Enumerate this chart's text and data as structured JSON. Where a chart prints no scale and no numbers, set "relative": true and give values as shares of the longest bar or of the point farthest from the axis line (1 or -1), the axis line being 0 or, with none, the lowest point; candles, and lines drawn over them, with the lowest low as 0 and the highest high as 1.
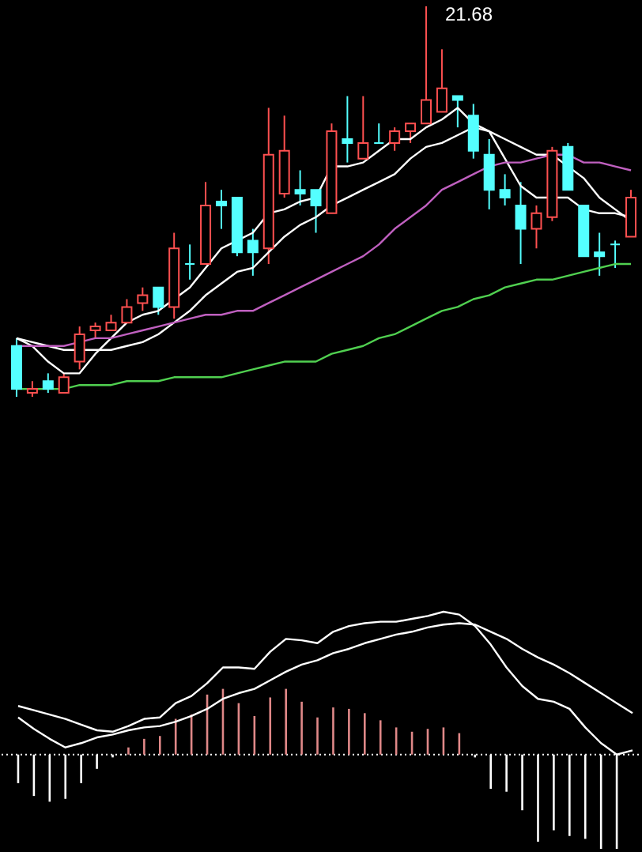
{
  "chart_data": [
    {
      "type": "candlestick",
      "relative": true,
      "categories": [
        null,
        null,
        null,
        null,
        null,
        null,
        null,
        null,
        null,
        null,
        null,
        null,
        null,
        null,
        null,
        null,
        null,
        null,
        null,
        null,
        null,
        null,
        null,
        null,
        null,
        null,
        null,
        null,
        null,
        null,
        null,
        null,
        null,
        null,
        null,
        null,
        null,
        null,
        null,
        null
      ],
      "ohlc": [
        [
          0.13,
          0.15,
          0,
          0.02
        ],
        [
          0.01,
          0.04,
          0,
          0.02
        ],
        [
          0.04,
          0.06,
          0.01,
          0.02
        ],
        [
          0.01,
          0.06,
          0.01,
          0.05
        ],
        [
          0.09,
          0.18,
          0.07,
          0.16
        ],
        [
          0.17,
          0.19,
          0.15,
          0.18
        ],
        [
          0.17,
          0.21,
          0.17,
          0.19
        ],
        [
          0.19,
          0.25,
          0.19,
          0.23
        ],
        [
          0.24,
          0.28,
          0.22,
          0.26
        ],
        [
          0.28,
          0.28,
          0.21,
          0.23
        ],
        [
          0.23,
          0.42,
          0.2,
          0.38
        ],
        [
          0.34,
          0.39,
          0.3,
          0.34
        ],
        [
          0.34,
          0.55,
          0.34,
          0.49
        ],
        [
          0.5,
          0.53,
          0.43,
          0.49
        ],
        [
          0.51,
          0.51,
          0.36,
          0.37
        ],
        [
          0.4,
          0.43,
          0.31,
          0.37
        ],
        [
          0.38,
          0.74,
          0.34,
          0.62
        ],
        [
          0.52,
          0.72,
          0.51,
          0.63
        ],
        [
          0.53,
          0.58,
          0.49,
          0.52
        ],
        [
          0.53,
          0.53,
          0.42,
          0.49
        ],
        [
          0.47,
          0.7,
          0.47,
          0.68
        ],
        [
          0.66,
          0.77,
          0.6,
          0.65
        ],
        [
          0.61,
          0.77,
          0.61,
          0.65
        ],
        [
          0.65,
          0.7,
          0.65,
          0.65
        ],
        [
          0.65,
          0.69,
          0.63,
          0.68
        ],
        [
          0.68,
          0.7,
          0.65,
          0.7
        ],
        [
          0.7,
          1,
          0.7,
          0.76
        ],
        [
          0.73,
          0.89,
          0.73,
          0.79
        ],
        [
          0.77,
          0.77,
          0.69,
          0.76
        ],
        [
          0.72,
          0.75,
          0.61,
          0.63
        ],
        [
          0.62,
          0.66,
          0.48,
          0.53
        ],
        [
          0.53,
          0.57,
          0.49,
          0.51
        ],
        [
          0.49,
          0.55,
          0.34,
          0.43
        ],
        [
          0.43,
          0.49,
          0.38,
          0.47
        ],
        [
          0.46,
          0.64,
          0.45,
          0.63
        ],
        [
          0.64,
          0.65,
          0.53,
          0.53
        ],
        [
          0.49,
          0.49,
          0.36,
          0.36
        ],
        [
          0.37,
          0.42,
          0.31,
          0.36
        ],
        [
          0.39,
          0.4,
          0.33,
          0.39
        ],
        [
          0.41,
          0.53,
          0.41,
          0.51
        ]
      ],
      "colors": [
        "#54ffff",
        "#ff5050",
        "#54ffff",
        "#ff5050",
        "#ff5050",
        "#ff5050",
        "#ff5050",
        "#ff5050",
        "#ff5050",
        "#54ffff",
        "#ff5050",
        "#54ffff",
        "#ff5050",
        "#54ffff",
        "#54ffff",
        "#54ffff",
        "#ff5050",
        "#ff5050",
        "#54ffff",
        "#54ffff",
        "#ff5050",
        "#54ffff",
        "#ff5050",
        "#54ffff",
        "#ff5050",
        "#ff5050",
        "#ff5050",
        "#ff5050",
        "#54ffff",
        "#54ffff",
        "#54ffff",
        "#54ffff",
        "#54ffff",
        "#ff5050",
        "#ff5050",
        "#54ffff",
        "#54ffff",
        "#54ffff",
        "#54ffff",
        "#ff5050"
      ],
      "annotations": [
        "21.68"
      ],
      "series": [
        {
          "type": "line",
          "color": "#ffffff",
          "values": [
            0.15,
            0.13,
            0.09,
            0.06,
            0.06,
            0.11,
            0.15,
            0.19,
            0.21,
            0.22,
            0.25,
            0.28,
            0.33,
            0.38,
            0.4,
            0.42,
            0.47,
            0.48,
            0.5,
            0.51,
            0.59,
            0.59,
            0.6,
            0.63,
            0.66,
            0.66,
            0.69,
            0.71,
            0.74,
            0.7,
            0.68,
            0.61,
            0.54,
            0.51,
            0.51,
            0.51,
            0.48,
            0.47,
            0.47,
            0.46
          ]
        },
        {
          "type": "line",
          "color": "#ffffff",
          "values": [
            0.15,
            0.14,
            0.13,
            0.12,
            0.12,
            0.12,
            0.12,
            0.13,
            0.14,
            0.16,
            0.19,
            0.22,
            0.26,
            0.29,
            0.32,
            0.33,
            0.37,
            0.41,
            0.44,
            0.46,
            0.49,
            0.51,
            0.53,
            0.55,
            0.57,
            0.61,
            0.64,
            0.65,
            0.67,
            0.69,
            0.68,
            0.66,
            0.64,
            0.62,
            0.62,
            null,
            0.56,
            0.51,
            0.48,
            0.45
          ]
        },
        {
          "type": "line",
          "color": "#c060c0",
          "values": [
            0.13,
            0.13,
            0.13,
            0.13,
            0.14,
            0.15,
            0.15,
            0.16,
            0.17,
            0.18,
            0.19,
            0.2,
            0.21,
            0.21,
            0.22,
            0.22,
            0.24,
            0.26,
            0.28,
            0.3,
            0.32,
            0.34,
            0.36,
            0.39,
            0.43,
            0.46,
            0.49,
            0.53,
            0.55,
            0.57,
            0.59,
            0.6,
            0.6,
            0.61,
            0.62,
            0.62,
            0.6,
            0.6,
            0.59,
            0.58
          ]
        },
        {
          "type": "line",
          "color": "#50d050",
          "values": [
            0.02,
            0.02,
            0.02,
            0.02,
            0.03,
            0.03,
            0.03,
            0.04,
            0.04,
            0.04,
            0.05,
            0.05,
            0.05,
            0.05,
            0.06,
            0.07,
            0.08,
            0.09,
            0.09,
            0.09,
            0.11,
            0.12,
            0.13,
            0.15,
            0.16,
            0.18,
            0.2,
            0.22,
            0.23,
            0.25,
            0.26,
            0.28,
            0.29,
            0.3,
            0.3,
            0.31,
            0.32,
            0.33,
            0.34,
            0.34
          ]
        }
      ]
    },
    {
      "type": "bar",
      "relative": true,
      "ref_lines": [
        {
          "axis": "y",
          "value": 0,
          "line_style": "dotted",
          "color": "#ffffff"
        }
      ],
      "categories": [
        null,
        null,
        null,
        null,
        null,
        null,
        null,
        null,
        null,
        null,
        null,
        null,
        null,
        null,
        null,
        null,
        null,
        null,
        null,
        null,
        null,
        null,
        null,
        null,
        null,
        null,
        null,
        null,
        null,
        null,
        null,
        null,
        null,
        null,
        null,
        null,
        null,
        null,
        null,
        null
      ],
      "series": [
        {
          "type": "bar",
          "values": [
            -0.2,
            -0.29,
            -0.33,
            -0.31,
            -0.2,
            -0.1,
            -0.02,
            0.05,
            0.11,
            0.13,
            0.25,
            0.28,
            0.42,
            0.46,
            0.36,
            0.27,
            0.4,
            0.46,
            0.37,
            0.26,
            0.33,
            0.32,
            0.29,
            0.24,
            0.19,
            0.16,
            0.18,
            0.19,
            0.15,
            -0.02,
            -0.24,
            -0.26,
            -0.39,
            -0.61,
            -0.53,
            -0.57,
            -0.59,
            -0.66,
            -0.66,
            null
          ],
          "colors": [
            "#ffffff",
            "#ffffff",
            "#ffffff",
            "#ffffff",
            "#ffffff",
            "#ffffff",
            "#ffffff",
            "#e08888",
            "#e08888",
            "#e08888",
            "#e08888",
            "#e08888",
            "#e08888",
            "#e08888",
            "#e08888",
            "#e08888",
            "#e08888",
            "#e08888",
            "#e08888",
            "#e08888",
            "#e08888",
            "#e08888",
            "#e08888",
            "#e08888",
            "#e08888",
            "#e08888",
            "#e08888",
            "#e08888",
            "#e08888",
            "#ffffff",
            "#ffffff",
            "#ffffff",
            "#ffffff",
            "#ffffff",
            "#ffffff",
            "#ffffff",
            "#ffffff",
            "#ffffff",
            "#ffffff",
            "#ffffff"
          ]
        },
        {
          "type": "line",
          "color": "#ffffff",
          "values": [
            0.34,
            0.31,
            0.28,
            0.25,
            0.21,
            0.17,
            0.16,
            0.2,
            0.25,
            0.26,
            0.36,
            0.41,
            0.5,
            0.61,
            0.61,
            0.6,
            0.72,
            0.81,
            0.8,
            0.78,
            0.86,
            0.9,
            0.92,
            0.93,
            0.93,
            0.95,
            0.97,
            1,
            0.98,
            0.9,
            0.77,
            0.61,
            0.48,
            0.39,
            0.37,
            0.32,
            0.19,
            0.08,
            0,
            0.03
          ]
        },
        {
          "type": "line",
          "color": "#ffffff",
          "values": [
            0.26,
            0.18,
            0.11,
            0.05,
            0.08,
            0.12,
            0.14,
            0.17,
            0.19,
            0.2,
            0.23,
            0.27,
            0.32,
            0.39,
            0.43,
            0.46,
            0.52,
            0.58,
            0.63,
            0.66,
            0.71,
            0.74,
            0.78,
            0.81,
            0.84,
            0.86,
            0.89,
            0.91,
            0.92,
            0.91,
            0.86,
            0.81,
            0.74,
            0.68,
            0.63,
            0.57,
            0.5,
            0.43,
            0.36,
            0.29
          ]
        }
      ]
    }
  ]
}
